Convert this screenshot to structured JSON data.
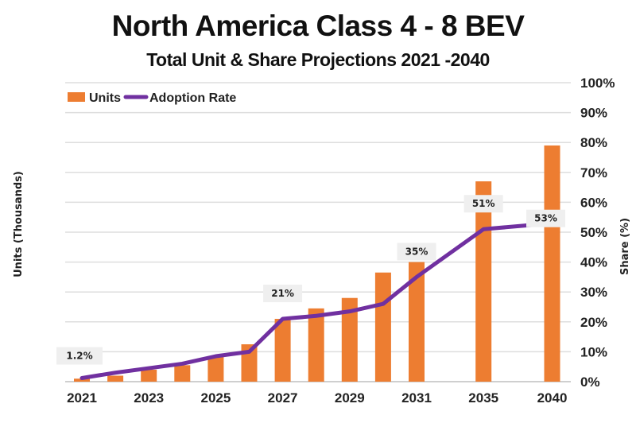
{
  "chart_data": {
    "type": "bar+line",
    "title": "North America Class 4 - 8 BEV",
    "subtitle": "Total Unit & Share Projections 2021 -2040",
    "ylabel_left": "Units (Thousands)",
    "ylabel_right": "Share (%)",
    "categories": [
      "2021",
      "2022",
      "2023",
      "2024",
      "2025",
      "2026",
      "2027",
      "2028",
      "2029",
      "2030",
      "2031",
      "2035",
      "2040"
    ],
    "x_tick_labels": [
      "2021",
      "2023",
      "2025",
      "2027",
      "2029",
      "2031",
      "2035",
      "2040"
    ],
    "right_axis": {
      "ylim": [
        0,
        100
      ],
      "ticks": [
        "0%",
        "10%",
        "20%",
        "30%",
        "40%",
        "50%",
        "60%",
        "70%",
        "80%",
        "90%",
        "100%"
      ]
    },
    "left_axis_ticks_shown": false,
    "grid": true,
    "legend": "top-left",
    "series": [
      {
        "name": "Units",
        "type": "bar",
        "color": "#ED7D31",
        "axis": "left",
        "values": [
          1,
          2,
          4,
          5.5,
          8.5,
          12.5,
          21,
          24.5,
          28,
          36.5,
          40,
          67,
          79
        ]
      },
      {
        "name": "Adoption Rate",
        "type": "line",
        "color": "#7030A0",
        "axis": "right",
        "values": [
          1.2,
          3,
          4.5,
          6,
          8.5,
          10,
          21,
          22,
          23.5,
          26,
          35,
          51,
          53
        ]
      }
    ],
    "data_labels": [
      {
        "category": "2021",
        "text": "1.2%"
      },
      {
        "category": "2027",
        "text": "21%"
      },
      {
        "category": "2031",
        "text": "35%"
      },
      {
        "category": "2035",
        "text": "51%"
      },
      {
        "category": "2040",
        "text": "53%"
      }
    ]
  }
}
